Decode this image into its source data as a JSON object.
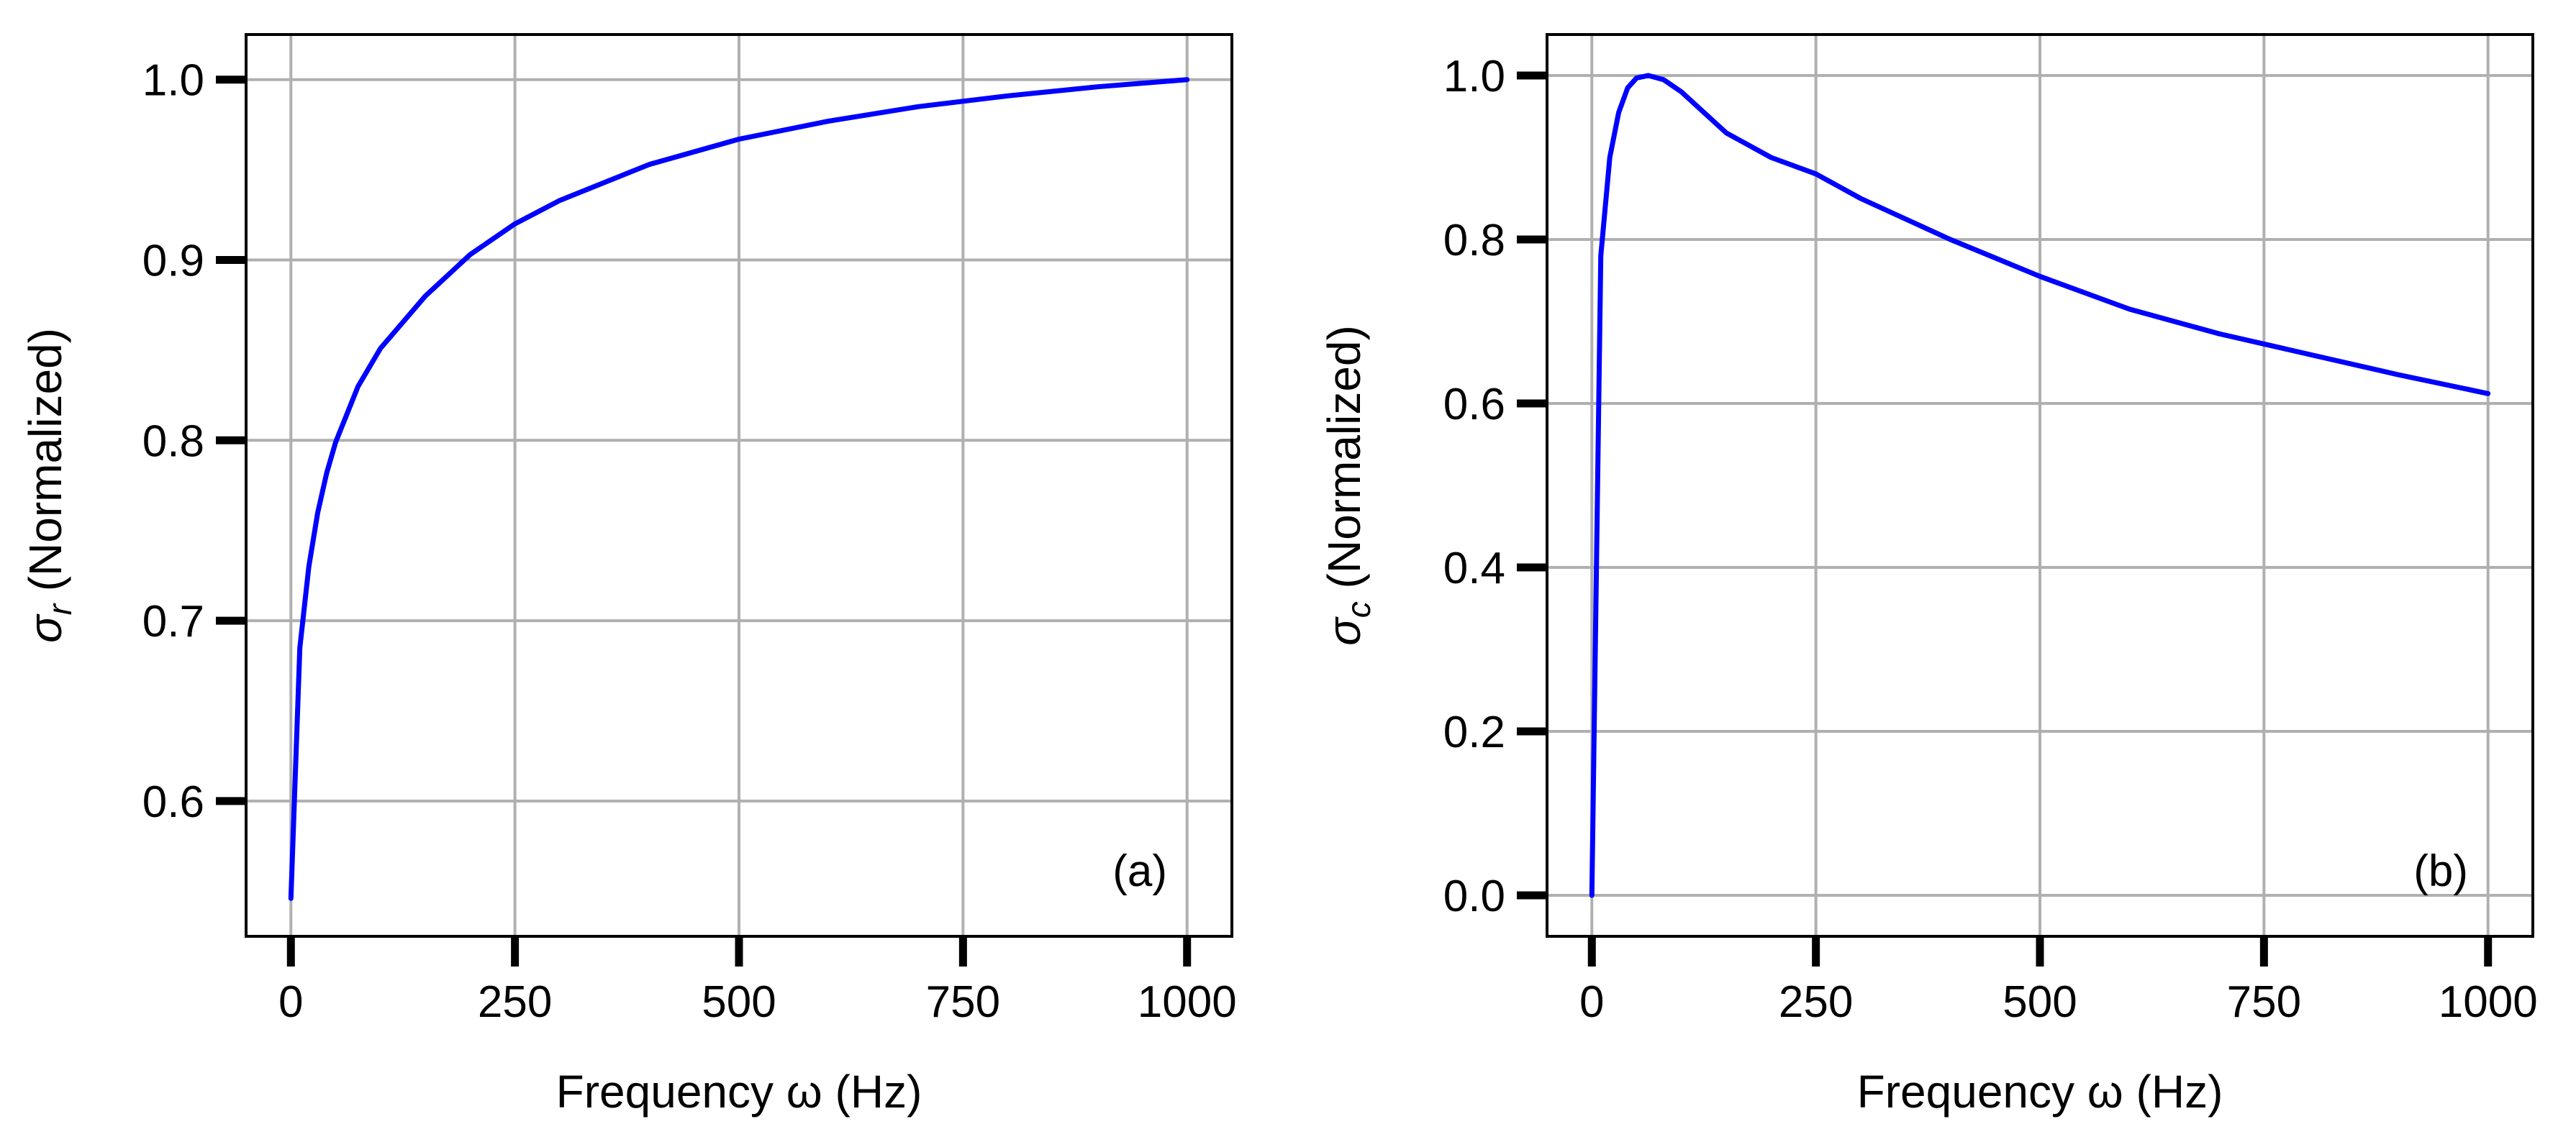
{
  "chart_data": [
    {
      "type": "line",
      "panel_label": "(a)",
      "xlabel": "Frequency ω (Hz)",
      "ylabel": {
        "symbol": "σ",
        "subscript": "r",
        "text": " (Normalized)"
      },
      "xlim": [
        -50,
        1050
      ],
      "ylim": [
        0.525,
        1.025
      ],
      "xticks": [
        0,
        250,
        500,
        750,
        1000
      ],
      "xtick_labels": [
        "0",
        "250",
        "500",
        "750",
        "1000"
      ],
      "yticks": [
        0.6,
        0.7,
        0.8,
        0.9,
        1.0
      ],
      "ytick_labels": [
        "0.6",
        "0.7",
        "0.8",
        "0.9",
        "1.0"
      ],
      "grid": true,
      "series": [
        {
          "name": "sigma_r",
          "color": "#0000ff",
          "x": [
            0,
            10,
            20,
            30,
            40,
            50,
            75,
            100,
            150,
            200,
            250,
            300,
            400,
            500,
            600,
            700,
            800,
            900,
            1000
          ],
          "y": [
            0.546,
            0.685,
            0.73,
            0.76,
            0.782,
            0.799,
            0.83,
            0.851,
            0.88,
            0.903,
            0.92,
            0.933,
            0.953,
            0.967,
            0.977,
            0.985,
            0.991,
            0.996,
            1.0
          ]
        }
      ]
    },
    {
      "type": "line",
      "panel_label": "(b)",
      "xlabel": "Frequency ω (Hz)",
      "ylabel": {
        "symbol": "σ",
        "subscript": "c",
        "text": " (Normalized)"
      },
      "xlim": [
        -50,
        1050
      ],
      "ylim": [
        -0.05,
        1.05
      ],
      "xticks": [
        0,
        250,
        500,
        750,
        1000
      ],
      "xtick_labels": [
        "0",
        "250",
        "500",
        "750",
        "1000"
      ],
      "yticks": [
        0.0,
        0.2,
        0.4,
        0.6,
        0.8,
        1.0
      ],
      "ytick_labels": [
        "0.0",
        "0.2",
        "0.4",
        "0.6",
        "0.8",
        "1.0"
      ],
      "grid": true,
      "series": [
        {
          "name": "sigma_c",
          "color": "#0000ff",
          "x": [
            0,
            10,
            20,
            30,
            40,
            50,
            63,
            80,
            100,
            150,
            200,
            250,
            300,
            400,
            500,
            600,
            700,
            800,
            900,
            1000
          ],
          "y": [
            0.0,
            0.78,
            0.9,
            0.955,
            0.985,
            0.997,
            1.0,
            0.995,
            0.98,
            0.93,
            0.9,
            0.88,
            0.85,
            0.8,
            0.755,
            0.715,
            0.685,
            0.66,
            0.635,
            0.612
          ]
        }
      ]
    }
  ]
}
